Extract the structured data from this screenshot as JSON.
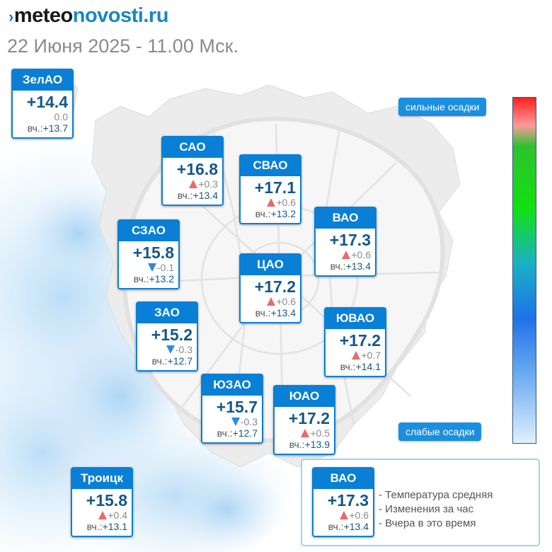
{
  "header": {
    "logo_part1": "meteo",
    "logo_part2": "novosti.ru",
    "datetime": "22 Июня 2025 - 11.00 Мск."
  },
  "districts": [
    {
      "id": "zelao",
      "name": "ЗелАО",
      "temp": "+14.4",
      "dir": "none",
      "delta": "0.0",
      "yesterday_label": "вч.:",
      "yesterday": "+13.7"
    },
    {
      "id": "sao",
      "name": "САО",
      "temp": "+16.8",
      "dir": "up",
      "delta": "+0.3",
      "yesterday_label": "вч.:",
      "yesterday": "+13.4"
    },
    {
      "id": "svao",
      "name": "СВАО",
      "temp": "+17.1",
      "dir": "up",
      "delta": "+0.6",
      "yesterday_label": "вч.:",
      "yesterday": "+13.2"
    },
    {
      "id": "vao",
      "name": "ВАО",
      "temp": "+17.3",
      "dir": "up",
      "delta": "+0.6",
      "yesterday_label": "вч.:",
      "yesterday": "+13.4"
    },
    {
      "id": "szao",
      "name": "СЗАО",
      "temp": "+15.8",
      "dir": "down",
      "delta": "-0.1",
      "yesterday_label": "вч.:",
      "yesterday": "+13.2"
    },
    {
      "id": "cao",
      "name": "ЦАО",
      "temp": "+17.2",
      "dir": "up",
      "delta": "+0.6",
      "yesterday_label": "вч.:",
      "yesterday": "+13.4"
    },
    {
      "id": "zao",
      "name": "ЗАО",
      "temp": "+15.2",
      "dir": "down",
      "delta": "-0.3",
      "yesterday_label": "вч.:",
      "yesterday": "+12.7"
    },
    {
      "id": "yuvao",
      "name": "ЮВАО",
      "temp": "+17.2",
      "dir": "up",
      "delta": "+0.7",
      "yesterday_label": "вч.:",
      "yesterday": "+14.1"
    },
    {
      "id": "yuzao",
      "name": "ЮЗАО",
      "temp": "+15.7",
      "dir": "down",
      "delta": "-0.3",
      "yesterday_label": "вч.:",
      "yesterday": "+12.7"
    },
    {
      "id": "yuao",
      "name": "ЮАО",
      "temp": "+17.2",
      "dir": "up",
      "delta": "+0.5",
      "yesterday_label": "вч.:",
      "yesterday": "+13.9"
    },
    {
      "id": "troick",
      "name": "Троицк",
      "temp": "+15.8",
      "dir": "up",
      "delta": "+0.4",
      "yesterday_label": "вч.:",
      "yesterday": "+13.1"
    }
  ],
  "precip_scale": {
    "top_label": "сильные осадки",
    "bottom_label": "слабые осадки",
    "colors": [
      "#ff2020",
      "#2ec12e",
      "#1ab1c4",
      "#1e72e8",
      "#dff0fd"
    ]
  },
  "legend": {
    "sample": {
      "name": "ВАО",
      "temp": "+17.3",
      "dir": "up",
      "delta": "+0.6",
      "yesterday_label": "вч.:",
      "yesterday": "+13.4"
    },
    "lines": [
      "- Температура средняя",
      "- Изменения за час",
      "- Вчера в это время"
    ]
  },
  "colors": {
    "card_header": "#0a7fd6",
    "rise": "#e86a6a",
    "fall": "#2b8ae0",
    "value": "#15578a"
  }
}
